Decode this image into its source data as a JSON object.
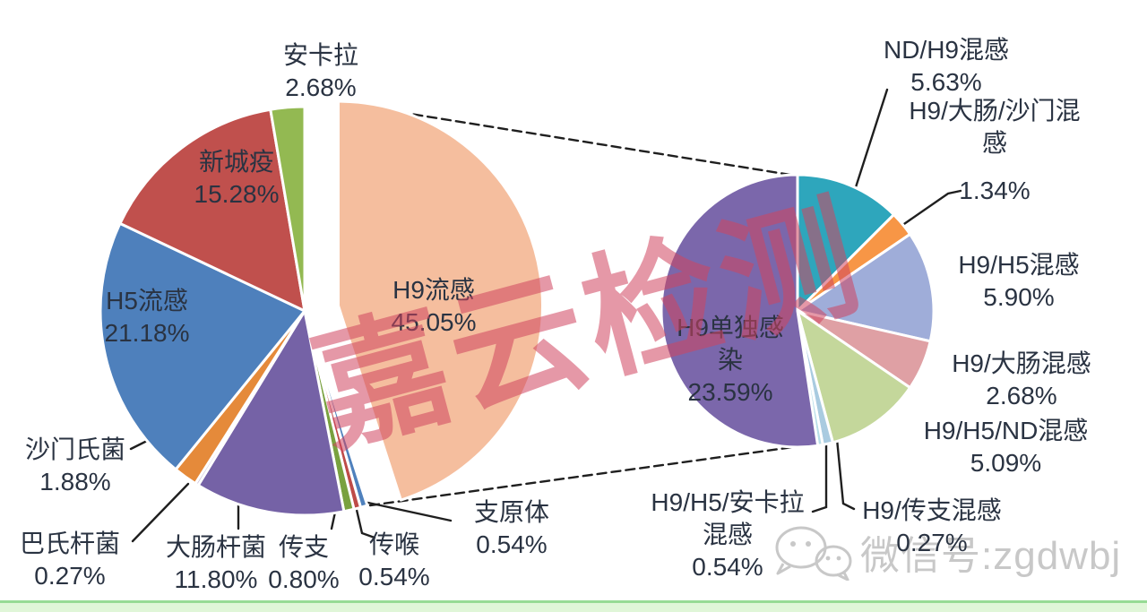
{
  "watermark": {
    "text": "嘉云检测",
    "color": "#d04560"
  },
  "wechat": {
    "icon": "wechat-icon",
    "text": "微信号:zgdwbj",
    "color": "#c8c8c8"
  },
  "footer": {
    "fill": "#e0f6d8",
    "border": "#97db95"
  },
  "label_color": "#2a3342",
  "line_color": "#1f1f1f",
  "chart_data": {
    "type": "pie-of-pie",
    "legend": "none",
    "main_pie": {
      "slices": [
        {
          "id": "h9-flu",
          "label": "H9流感",
          "value": 45.05,
          "pct": "45.05%",
          "color": "#f5be9e",
          "exploded": true
        },
        {
          "id": "mycoplasma",
          "label": "支原体",
          "value": 0.54,
          "pct": "0.54%",
          "color": "#4f81bd"
        },
        {
          "id": "ilt",
          "label": "传喉",
          "value": 0.54,
          "pct": "0.54%",
          "color": "#be4b48"
        },
        {
          "id": "ib",
          "label": "传支",
          "value": 0.8,
          "pct": "0.80%",
          "color": "#79a13f"
        },
        {
          "id": "e-coli",
          "label": "大肠杆菌",
          "value": 11.8,
          "pct": "11.80%",
          "color": "#7562a6"
        },
        {
          "id": "pasteurella",
          "label": "巴氏杆菌",
          "value": 0.27,
          "pct": "0.27%",
          "color": "#ccc0da"
        },
        {
          "id": "salmonella",
          "label": "沙门氏菌",
          "value": 1.88,
          "pct": "1.88%",
          "color": "#e58a3a"
        },
        {
          "id": "h5-flu",
          "label": "H5流感",
          "value": 21.18,
          "pct": "21.18%",
          "color": "#4e80bc"
        },
        {
          "id": "newcastle",
          "label": "新城疫",
          "value": 15.28,
          "pct": "15.28%",
          "color": "#c0504d"
        },
        {
          "id": "ankara",
          "label": "安卡拉",
          "value": 2.68,
          "pct": "2.68%",
          "color": "#93b952"
        }
      ]
    },
    "breakdown_pie": {
      "parent_label": "H9流感",
      "slices": [
        {
          "id": "nd-h9-mix",
          "label": "ND/H9混感",
          "value": 5.63,
          "pct": "5.63%",
          "color": "#2ea6bc"
        },
        {
          "id": "h9-ecoli-sal-mix",
          "label": "H9/大肠/沙门混感",
          "label_lines": [
            "H9/大肠/沙门混",
            "感"
          ],
          "value": 1.34,
          "pct": "1.34%",
          "color": "#f79646"
        },
        {
          "id": "h9-h5-mix",
          "label": "H9/H5混感",
          "value": 5.9,
          "pct": "5.90%",
          "color": "#9fadd9"
        },
        {
          "id": "h9-ecoli-mix",
          "label": "H9/大肠混感",
          "value": 2.68,
          "pct": "2.68%",
          "color": "#dfa0a4"
        },
        {
          "id": "h9-h5-nd-mix",
          "label": "H9/H5/ND混感",
          "value": 5.09,
          "pct": "5.09%",
          "color": "#c4d79b"
        },
        {
          "id": "h9-h5-ankara-mix",
          "label": "H9/H5/安卡拉混感",
          "label_lines": [
            "H9/H5/安卡拉",
            "混感"
          ],
          "value": 0.54,
          "pct": "0.54%",
          "color": "#a9cbe0"
        },
        {
          "id": "h9-ib-mix",
          "label": "H9/传支混感",
          "value": 0.27,
          "pct": "0.27%",
          "color": "#b7dee8"
        },
        {
          "id": "h9-only",
          "label": "H9单独感染",
          "label_lines": [
            "H9单独感",
            "染"
          ],
          "value": 23.59,
          "pct": "23.59%",
          "color": "#7b67ab"
        }
      ]
    }
  }
}
